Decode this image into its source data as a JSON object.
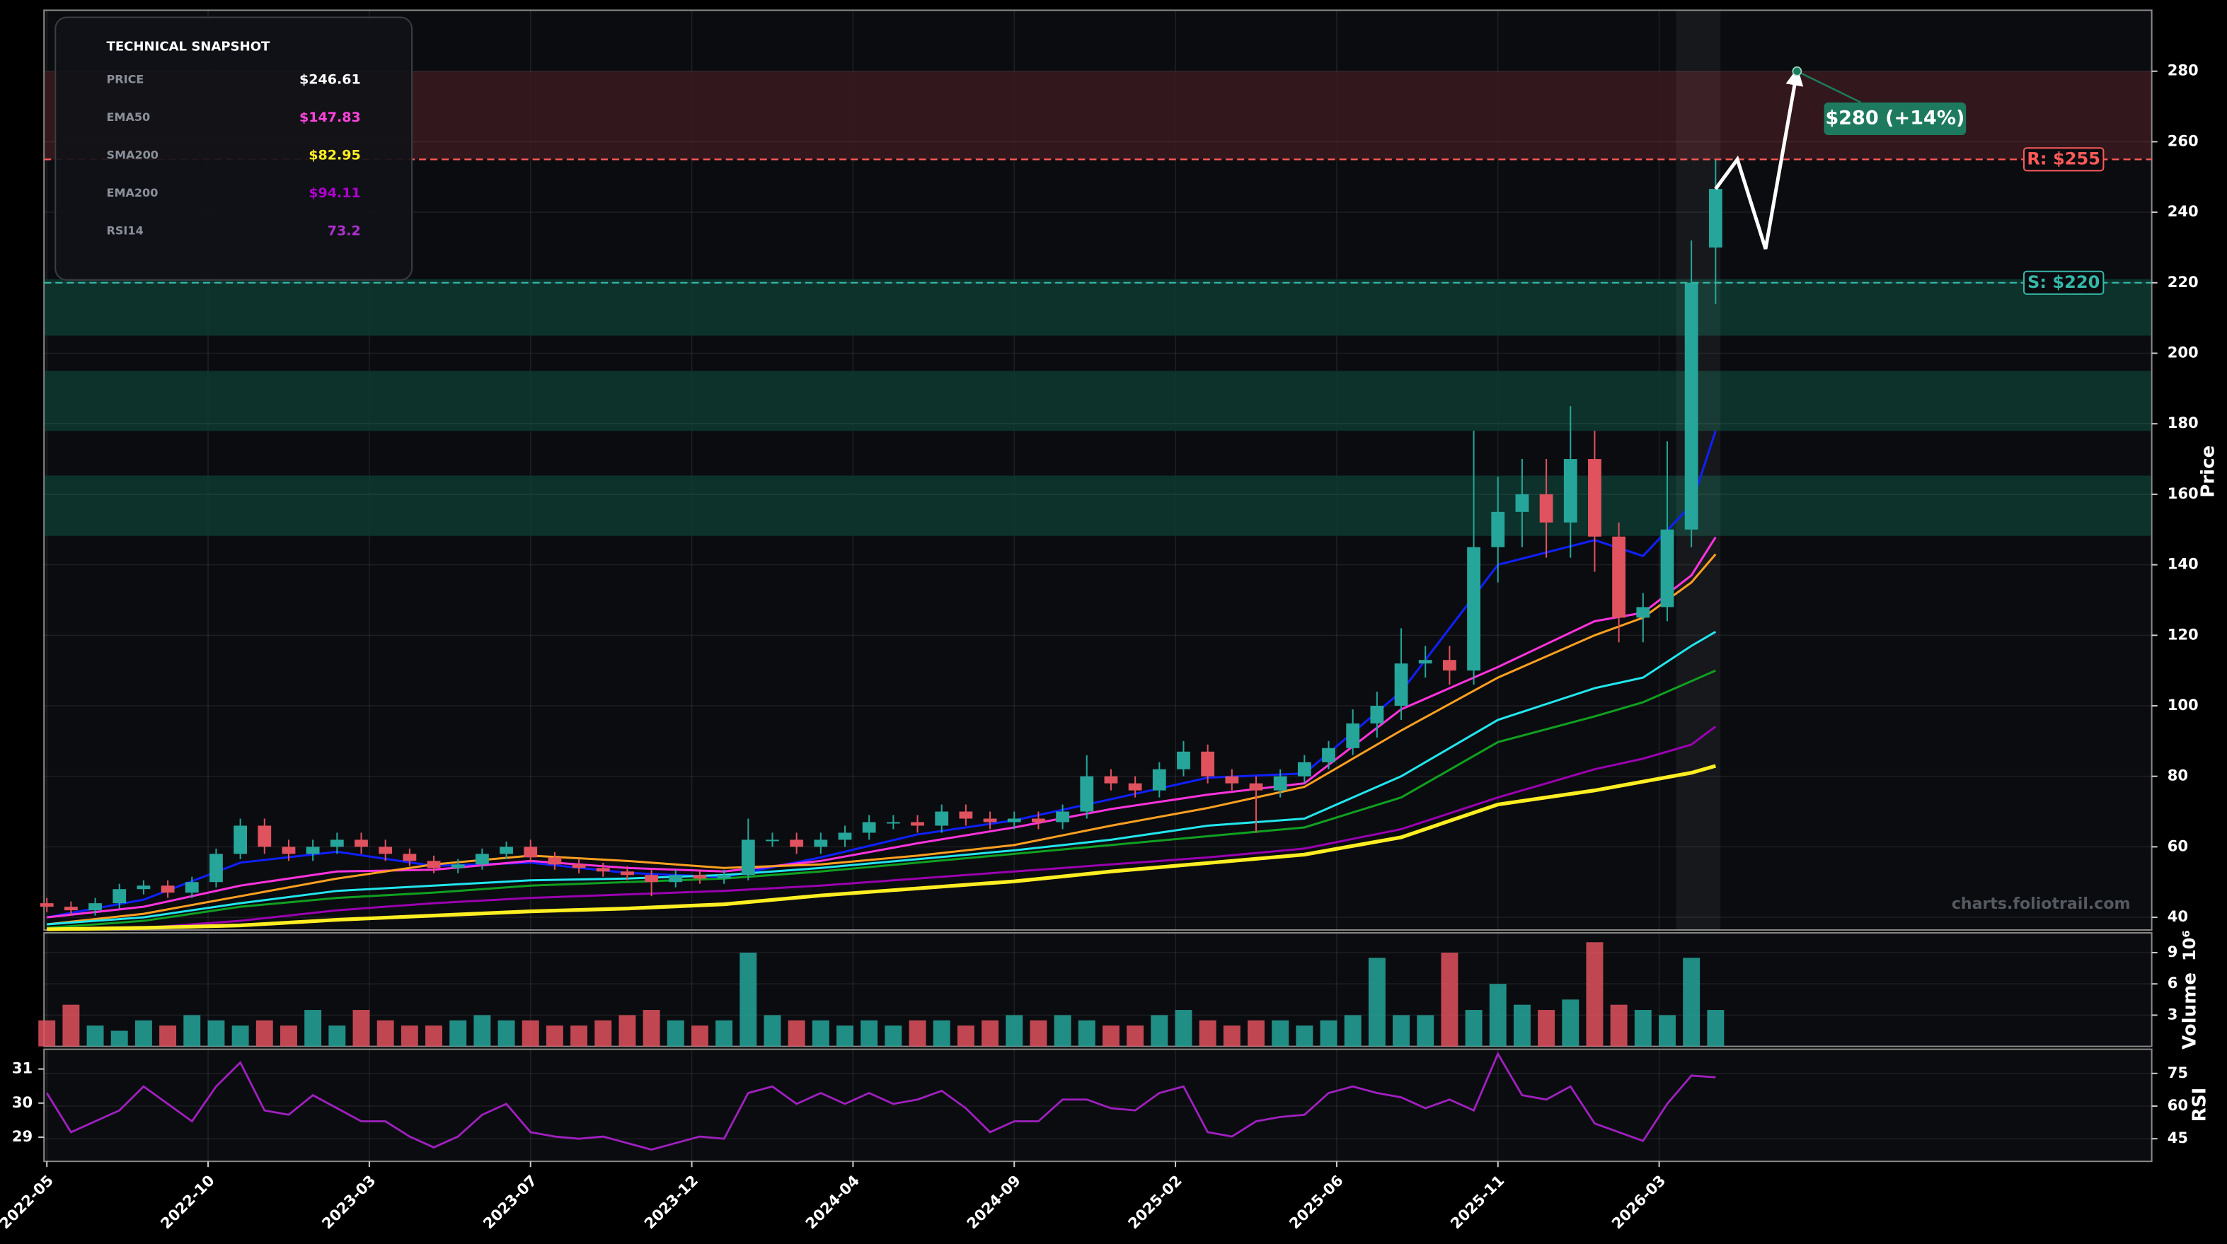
{
  "snapshot": {
    "title": "TECHNICAL SNAPSHOT",
    "rows": [
      {
        "label": "PRICE",
        "value": "$246.61",
        "color": "#ffffff"
      },
      {
        "label": "EMA50",
        "value": "$147.83",
        "color": "#ff44dd"
      },
      {
        "label": "SMA200",
        "value": "$82.95",
        "color": "#ffee22"
      },
      {
        "label": "EMA200",
        "value": "$94.11",
        "color": "#b000d0"
      },
      {
        "label": "RSI14",
        "value": "73.2",
        "color": "#b030d0"
      }
    ]
  },
  "watermark": "charts.foliotrail.com",
  "chart_data": [
    {
      "type": "candlestick",
      "y_label": "Price",
      "xlim": [
        -0.35,
        261.1
      ],
      "ylim": [
        36.4,
        297.3
      ],
      "yticks": [
        40,
        60,
        80,
        100,
        120,
        140,
        160,
        180,
        200,
        220,
        240,
        260,
        280
      ],
      "grid": true,
      "up_color": "#26a69a",
      "down_color": "#e0525e",
      "x": [
        0,
        3,
        6,
        9,
        12,
        15,
        18,
        21,
        24,
        27,
        30,
        33,
        36,
        39,
        42,
        45,
        48,
        51,
        54,
        57,
        60,
        63,
        66,
        69,
        72,
        75,
        78,
        81,
        84,
        87,
        90,
        93,
        96,
        99,
        102,
        105,
        108,
        111,
        114,
        117,
        120,
        123,
        126,
        129,
        132,
        135,
        138,
        141,
        144,
        147,
        150,
        153,
        156,
        159,
        162,
        165,
        168,
        171,
        174,
        177,
        180,
        183,
        186,
        189,
        192,
        195,
        198,
        201,
        204,
        207
      ],
      "open": [
        44,
        43,
        42,
        44,
        48,
        49,
        47,
        50,
        58,
        66,
        60,
        58,
        60,
        62,
        60,
        58,
        56,
        54,
        55,
        58,
        60,
        57,
        55,
        54,
        53,
        52,
        50,
        52,
        51,
        52,
        62,
        62,
        60,
        62,
        64,
        67,
        67,
        66,
        70,
        68,
        67,
        68,
        67,
        70,
        80,
        78,
        76,
        82,
        87,
        80,
        78,
        76,
        80,
        84,
        88,
        95,
        100,
        112,
        113,
        110,
        145,
        155,
        160,
        152,
        170,
        148,
        125,
        128,
        150,
        230
      ],
      "high": [
        45.5,
        44.5,
        45.5,
        49.5,
        50.5,
        50.5,
        51.5,
        59.5,
        68,
        68,
        62,
        62,
        64,
        64,
        62,
        59.5,
        57.5,
        56.5,
        59.5,
        61.5,
        62,
        58.5,
        56.5,
        55.5,
        54.5,
        53.5,
        53.5,
        53.5,
        53.5,
        68,
        64,
        64,
        64,
        66,
        69,
        69,
        69,
        72,
        72,
        70,
        70,
        70,
        72,
        86,
        82,
        80,
        84,
        90,
        89,
        82,
        80,
        82,
        86,
        90,
        99,
        104,
        122,
        117,
        117,
        178,
        165,
        170,
        170,
        185,
        178,
        152,
        132,
        175,
        232,
        255
      ],
      "low": [
        41.5,
        40.5,
        40.5,
        42.5,
        46.5,
        45.5,
        45.5,
        48.5,
        56.5,
        58,
        56,
        56,
        58,
        58,
        56,
        54.5,
        52.5,
        52.5,
        53.5,
        56.5,
        55.5,
        53.5,
        52.5,
        51.5,
        50.5,
        46,
        48.5,
        49.5,
        49.5,
        50.5,
        60,
        58,
        58,
        60,
        62,
        65,
        64,
        64,
        66,
        65,
        65,
        65,
        65,
        68,
        76,
        74,
        74,
        80,
        78,
        76,
        64,
        74,
        78,
        82,
        86,
        91,
        96,
        108,
        106,
        106,
        135,
        145,
        142,
        142,
        138,
        118,
        118,
        124,
        145,
        214
      ],
      "close": [
        43,
        42,
        44,
        48,
        49,
        47,
        50,
        58,
        66,
        60,
        58,
        60,
        62,
        60,
        58,
        56,
        54,
        55,
        58,
        60,
        57,
        55,
        54,
        53,
        52,
        50,
        52,
        51,
        52,
        62,
        62,
        60,
        62,
        64,
        67,
        67,
        66,
        70,
        68,
        67,
        68,
        67,
        70,
        80,
        78,
        76,
        82,
        87,
        80,
        78,
        76,
        80,
        84,
        88,
        95,
        100,
        112,
        113,
        110,
        145,
        155,
        160,
        152,
        170,
        148,
        125,
        128,
        150,
        220,
        246.61
      ],
      "line_x": [
        0,
        12,
        24,
        36,
        48,
        60,
        72,
        84,
        96,
        108,
        120,
        132,
        144,
        156,
        168,
        180,
        192,
        198,
        204,
        207
      ],
      "lines": [
        {
          "color": "#1020ff",
          "values": [
            40,
            45,
            55.5,
            58.6,
            54.6,
            55.5,
            52.6,
            51.4,
            57,
            63.5,
            67.5,
            73.5,
            79.6,
            80.8,
            104,
            140,
            147,
            142.5,
            157,
            178
          ]
        },
        {
          "color": "#ff33dd",
          "values": [
            40,
            43,
            49,
            53,
            53.5,
            56,
            54,
            53,
            56,
            61,
            65.5,
            70.7,
            74.8,
            78,
            99,
            111,
            124,
            126.4,
            137,
            147.83
          ]
        },
        {
          "color": "#ffa020",
          "values": [
            38,
            41,
            46,
            51,
            55,
            57.5,
            56,
            54,
            55,
            57.5,
            60.5,
            66,
            71,
            77,
            93,
            108,
            120,
            125,
            135,
            143
          ]
        },
        {
          "color": "#22e6ee",
          "values": [
            38,
            40,
            44,
            47.5,
            49,
            50.5,
            51,
            52,
            54,
            56.5,
            59,
            62,
            66,
            68,
            80,
            96,
            105,
            108,
            117,
            121
          ]
        },
        {
          "color": "#10a020",
          "values": [
            37,
            39,
            43,
            45.5,
            47,
            49,
            50,
            51,
            53,
            55.5,
            58,
            60.5,
            63,
            65.5,
            74,
            89.7,
            97,
            101,
            107,
            110
          ]
        },
        {
          "color": "#9a00b0",
          "values": [
            36.5,
            37,
            39,
            42,
            44,
            45.5,
            46.5,
            47.5,
            49,
            51,
            53,
            55,
            57,
            59.5,
            65,
            74,
            82,
            85,
            89,
            94.11
          ]
        },
        {
          "color": "#ffee22",
          "values": [
            36.6,
            37,
            37.7,
            39.3,
            40.5,
            41.7,
            42.5,
            43.7,
            46.2,
            48.2,
            50.2,
            53,
            55.4,
            57.8,
            62.7,
            72,
            76,
            78.5,
            81,
            82.95
          ]
        }
      ],
      "zones": [
        {
          "from": 255,
          "to": 280,
          "color": "#3a1a1e"
        },
        {
          "from": 205,
          "to": 221,
          "color": "#0d3a30"
        },
        {
          "from": 178,
          "to": 195,
          "color": "#0d3a30"
        },
        {
          "from": 148.2,
          "to": 165.3,
          "color": "#0d3a30"
        }
      ],
      "highlight_x": [
        202.1,
        207.6
      ],
      "levels": [
        {
          "value": 255,
          "label": "R: $255",
          "color": "#ff5a5a"
        },
        {
          "value": 220,
          "label": "S: $220",
          "color": "#35b8a8"
        }
      ],
      "projection": {
        "x": [
          207,
          209.7,
          213.2,
          217.1
        ],
        "y": [
          246.61,
          255,
          229.6,
          280
        ],
        "color": "#ffffff"
      },
      "target": {
        "x": 217.1,
        "y": 280,
        "label": "$280 (+14%)",
        "color": "#1d7a5e"
      }
    },
    {
      "type": "bar",
      "y_label": "Volume",
      "offset_label": "10⁶",
      "xlim": [
        -0.35,
        261.1
      ],
      "ylim": [
        0,
        10.9
      ],
      "yticks": [
        3,
        6,
        9
      ],
      "grid": true,
      "x": [
        0,
        3,
        6,
        9,
        12,
        15,
        18,
        21,
        24,
        27,
        30,
        33,
        36,
        39,
        42,
        45,
        48,
        51,
        54,
        57,
        60,
        63,
        66,
        69,
        72,
        75,
        78,
        81,
        84,
        87,
        90,
        93,
        96,
        99,
        102,
        105,
        108,
        111,
        114,
        117,
        120,
        123,
        126,
        129,
        132,
        135,
        138,
        141,
        144,
        147,
        150,
        153,
        156,
        159,
        162,
        165,
        168,
        171,
        174,
        177,
        180,
        183,
        186,
        189,
        192,
        195,
        198,
        201,
        204,
        207
      ],
      "values": [
        2.5,
        4,
        2,
        1.5,
        2.5,
        2,
        3,
        2.5,
        2,
        2.5,
        2,
        3.5,
        2,
        3.5,
        2.5,
        2,
        2,
        2.5,
        3,
        2.5,
        2.5,
        2,
        2,
        2.5,
        3,
        3.5,
        2.5,
        2,
        2.5,
        9,
        3,
        2.5,
        2.5,
        2,
        2.5,
        2,
        2.5,
        2.5,
        2,
        2.5,
        3,
        2.5,
        3,
        2.5,
        2,
        2,
        3,
        3.5,
        2.5,
        2,
        2.5,
        2.5,
        2,
        2.5,
        3,
        8.5,
        3,
        3,
        9,
        3.5,
        6,
        4,
        3.5,
        4.5,
        10,
        4,
        3.5,
        3,
        8.5,
        3.5
      ]
    },
    {
      "type": "line",
      "y2_label": "RSI",
      "xlim": [
        -0.35,
        261.1
      ],
      "xticks": [
        {
          "value": 0,
          "label": "2022-05"
        },
        {
          "value": 20,
          "label": "2022-10"
        },
        {
          "value": 40,
          "label": "2023-03"
        },
        {
          "value": 60,
          "label": "2023-07"
        },
        {
          "value": 80,
          "label": "2023-12"
        },
        {
          "value": 100,
          "label": "2024-04"
        },
        {
          "value": 120,
          "label": "2024-09"
        },
        {
          "value": 140,
          "label": "2025-02"
        },
        {
          "value": 160,
          "label": "2025-06"
        },
        {
          "value": 180,
          "label": "2025-11"
        },
        {
          "value": 200,
          "label": "2026-03"
        }
      ],
      "ylim": [
        28.29,
        31.58
      ],
      "yticks": [
        29,
        30,
        31
      ],
      "y2lim": [
        34.6,
        86.1
      ],
      "y2ticks": [
        45,
        60,
        75
      ],
      "grid": true,
      "x": [
        0,
        3,
        6,
        9,
        12,
        15,
        18,
        21,
        24,
        27,
        30,
        33,
        36,
        39,
        42,
        45,
        48,
        51,
        54,
        57,
        60,
        63,
        66,
        69,
        72,
        75,
        78,
        81,
        84,
        87,
        90,
        93,
        96,
        99,
        102,
        105,
        108,
        111,
        114,
        117,
        120,
        123,
        126,
        129,
        132,
        135,
        138,
        141,
        144,
        147,
        150,
        153,
        156,
        159,
        162,
        165,
        168,
        171,
        174,
        177,
        180,
        183,
        186,
        189,
        192,
        195,
        198,
        201,
        204,
        207
      ],
      "series": [
        {
          "color": "#a020c0",
          "axis": "y2",
          "values": [
            66,
            48,
            53,
            58,
            69,
            61,
            53,
            69,
            80,
            58,
            56,
            65,
            59,
            53,
            53,
            46,
            41,
            46,
            56,
            61,
            48,
            46,
            45,
            46,
            43,
            40,
            43,
            46,
            45,
            66,
            69,
            61,
            66,
            61,
            66,
            61,
            63,
            67,
            59,
            48,
            53,
            53,
            63,
            63,
            59,
            58,
            66,
            69,
            48,
            46,
            53,
            55,
            56,
            66,
            69,
            66,
            64,
            59,
            63,
            58,
            84,
            65,
            63,
            69,
            52,
            48,
            44,
            61,
            74,
            73.2
          ]
        }
      ]
    }
  ]
}
